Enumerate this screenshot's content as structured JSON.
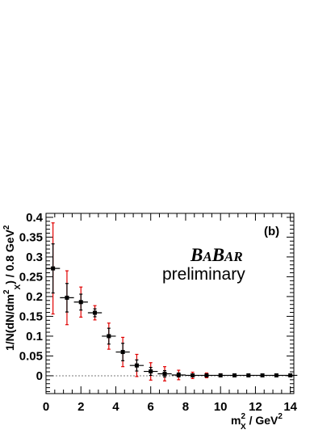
{
  "chart_data": {
    "type": "scatter",
    "panel_label": "(b)",
    "collaboration": {
      "first": "B",
      "a1": "A",
      "second": "B",
      "a2": "AR"
    },
    "preliminary": "preliminary",
    "ylabel": {
      "main": "1/N(dN/dm",
      "sup": "2",
      "sub": "X",
      "close": ") / 0.8 GeV",
      "sup2": "2"
    },
    "xlabel": {
      "main": "m",
      "sup": "2",
      "sub": "X",
      "rest": " / GeV",
      "sup2": "2"
    },
    "xlim": [
      0,
      14.2
    ],
    "ylim": [
      -0.045,
      0.41
    ],
    "x_ticks": [
      "0",
      "2",
      "4",
      "6",
      "8",
      "10",
      "12",
      "14"
    ],
    "y_ticks": [
      "0",
      "0.05",
      "0.1",
      "0.15",
      "0.2",
      "0.25",
      "0.3",
      "0.35",
      "0.4"
    ],
    "zero_line": true,
    "colors": {
      "stat_error": "#000000",
      "total_error": "#e00000",
      "zero_line": "#777777"
    },
    "points": [
      {
        "x": 0.4,
        "xerr": 0.4,
        "y": 0.271,
        "stat": 0.062,
        "tot": 0.115
      },
      {
        "x": 1.2,
        "xerr": 0.4,
        "y": 0.197,
        "stat": 0.036,
        "tot": 0.068
      },
      {
        "x": 2.0,
        "xerr": 0.4,
        "y": 0.186,
        "stat": 0.02,
        "tot": 0.038
      },
      {
        "x": 2.8,
        "xerr": 0.4,
        "y": 0.159,
        "stat": 0.01,
        "tot": 0.018
      },
      {
        "x": 3.6,
        "xerr": 0.4,
        "y": 0.1,
        "stat": 0.02,
        "tot": 0.033
      },
      {
        "x": 4.4,
        "xerr": 0.4,
        "y": 0.06,
        "stat": 0.022,
        "tot": 0.037
      },
      {
        "x": 5.2,
        "xerr": 0.4,
        "y": 0.026,
        "stat": 0.014,
        "tot": 0.028
      },
      {
        "x": 6.0,
        "xerr": 0.4,
        "y": 0.011,
        "stat": 0.01,
        "tot": 0.022
      },
      {
        "x": 6.8,
        "xerr": 0.4,
        "y": 0.005,
        "stat": 0.008,
        "tot": 0.018
      },
      {
        "x": 7.6,
        "xerr": 0.4,
        "y": 0.002,
        "stat": 0.005,
        "tot": 0.012
      },
      {
        "x": 8.4,
        "xerr": 0.4,
        "y": 0.001,
        "stat": 0.003,
        "tot": 0.008
      },
      {
        "x": 9.2,
        "xerr": 0.4,
        "y": 0.001,
        "stat": 0.002,
        "tot": 0.006
      },
      {
        "x": 10.0,
        "xerr": 0.4,
        "y": 0.001,
        "stat": 0.002,
        "tot": 0.004
      },
      {
        "x": 10.8,
        "xerr": 0.4,
        "y": 0.001,
        "stat": 0.001,
        "tot": 0.003
      },
      {
        "x": 11.6,
        "xerr": 0.4,
        "y": 0.001,
        "stat": 0.001,
        "tot": 0.002
      },
      {
        "x": 12.4,
        "xerr": 0.4,
        "y": 0.001,
        "stat": 0.001,
        "tot": 0.002
      },
      {
        "x": 13.2,
        "xerr": 0.4,
        "y": 0.001,
        "stat": 0.001,
        "tot": 0.002
      },
      {
        "x": 14.0,
        "xerr": 0.4,
        "y": 0.001,
        "stat": 0.001,
        "tot": 0.002
      }
    ]
  }
}
